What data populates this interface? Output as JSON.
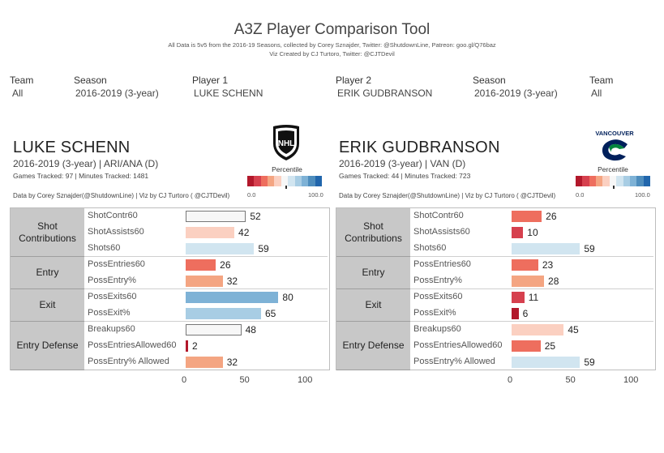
{
  "title": "A3Z Player Comparison Tool",
  "subtitle_line1": "All Data is 5v5 from the 2016-19 Seasons, collected by Corey Sznajder, Twitter: @ShutdownLine, Patreon: goo.gl/Q76baz",
  "subtitle_line2": "Viz Created by CJ Turtoro, Twitter: @CJTDevil",
  "filters": [
    {
      "label": "Team",
      "value": "All"
    },
    {
      "label": "Season",
      "value": "2016-2019 (3-year)"
    },
    {
      "label": "Player 1",
      "value": "LUKE SCHENN"
    },
    {
      "label": "Player 2",
      "value": "ERIK GUDBRANSON"
    },
    {
      "label": "Season",
      "value": "2016-2019 (3-year)"
    },
    {
      "label": "Team",
      "value": "All"
    }
  ],
  "colors": {
    "scale": [
      "#b2182b",
      "#d6404e",
      "#ee6e5e",
      "#f4a582",
      "#fbd0c1",
      "#f7f7f7",
      "#d1e5f0",
      "#a8cde4",
      "#7eb2d6",
      "#4e8dbd",
      "#2166ac"
    ],
    "group_bg": "#c8c8c8"
  },
  "players": [
    {
      "name": "LUKE SCHENN",
      "info": "2016-2019 (3-year) | ARI/ANA (D)",
      "games_minutes": "Games Tracked: 97  | Minutes Tracked: 1481",
      "credit": "Data by Corey Sznajder(@ShutdownLine) | Viz by CJ Turtoro ( @CJTDevil)",
      "logo": "nhl-shield-logo",
      "logo_text": "NHL",
      "percentile_label": "Percentile",
      "pct_min": "0.0",
      "pct_max": "100.0"
    },
    {
      "name": "ERIK GUDBRANSON",
      "info": "2016-2019 (3-year) | VAN (D)",
      "games_minutes": "Games Tracked: 44  | Minutes Tracked: 723",
      "credit": "Data by Corey Sznajder(@ShutdownLine) | Viz by CJ Turtoro ( @CJTDevil)",
      "logo": "vancouver-canucks-logo",
      "logo_text": "VANCOUVER",
      "percentile_label": "Percentile",
      "pct_min": "0.0",
      "pct_max": "100.0"
    }
  ],
  "chart_data": [
    {
      "type": "bar",
      "orientation": "horizontal",
      "player": "LUKE SCHENN",
      "groups": [
        {
          "name": "Shot Contributions",
          "metrics": [
            "ShotContr60",
            "ShotAssists60",
            "Shots60"
          ],
          "values": [
            52,
            42,
            59
          ]
        },
        {
          "name": "Entry",
          "metrics": [
            "PossEntries60",
            "PossEntry%"
          ],
          "values": [
            26,
            32
          ]
        },
        {
          "name": "Exit",
          "metrics": [
            "PossExits60",
            "PossExit%"
          ],
          "values": [
            80,
            65
          ]
        },
        {
          "name": "Entry Defense",
          "metrics": [
            "Breakups60",
            "PossEntriesAllowed60",
            "PossEntry% Allowed"
          ],
          "values": [
            48,
            2,
            32
          ]
        }
      ],
      "xlim": [
        0,
        100
      ],
      "xticks": [
        "0",
        "50",
        "100"
      ],
      "color_encoding": "percentile"
    },
    {
      "type": "bar",
      "orientation": "horizontal",
      "player": "ERIK GUDBRANSON",
      "groups": [
        {
          "name": "Shot Contributions",
          "metrics": [
            "ShotContr60",
            "ShotAssists60",
            "Shots60"
          ],
          "values": [
            26,
            10,
            59
          ]
        },
        {
          "name": "Entry",
          "metrics": [
            "PossEntries60",
            "PossEntry%"
          ],
          "values": [
            23,
            28
          ]
        },
        {
          "name": "Exit",
          "metrics": [
            "PossExits60",
            "PossExit%"
          ],
          "values": [
            11,
            6
          ]
        },
        {
          "name": "Entry Defense",
          "metrics": [
            "Breakups60",
            "PossEntriesAllowed60",
            "PossEntry% Allowed"
          ],
          "values": [
            45,
            25,
            59
          ]
        }
      ],
      "xlim": [
        0,
        100
      ],
      "xticks": [
        "0",
        "50",
        "100"
      ],
      "color_encoding": "percentile"
    }
  ]
}
